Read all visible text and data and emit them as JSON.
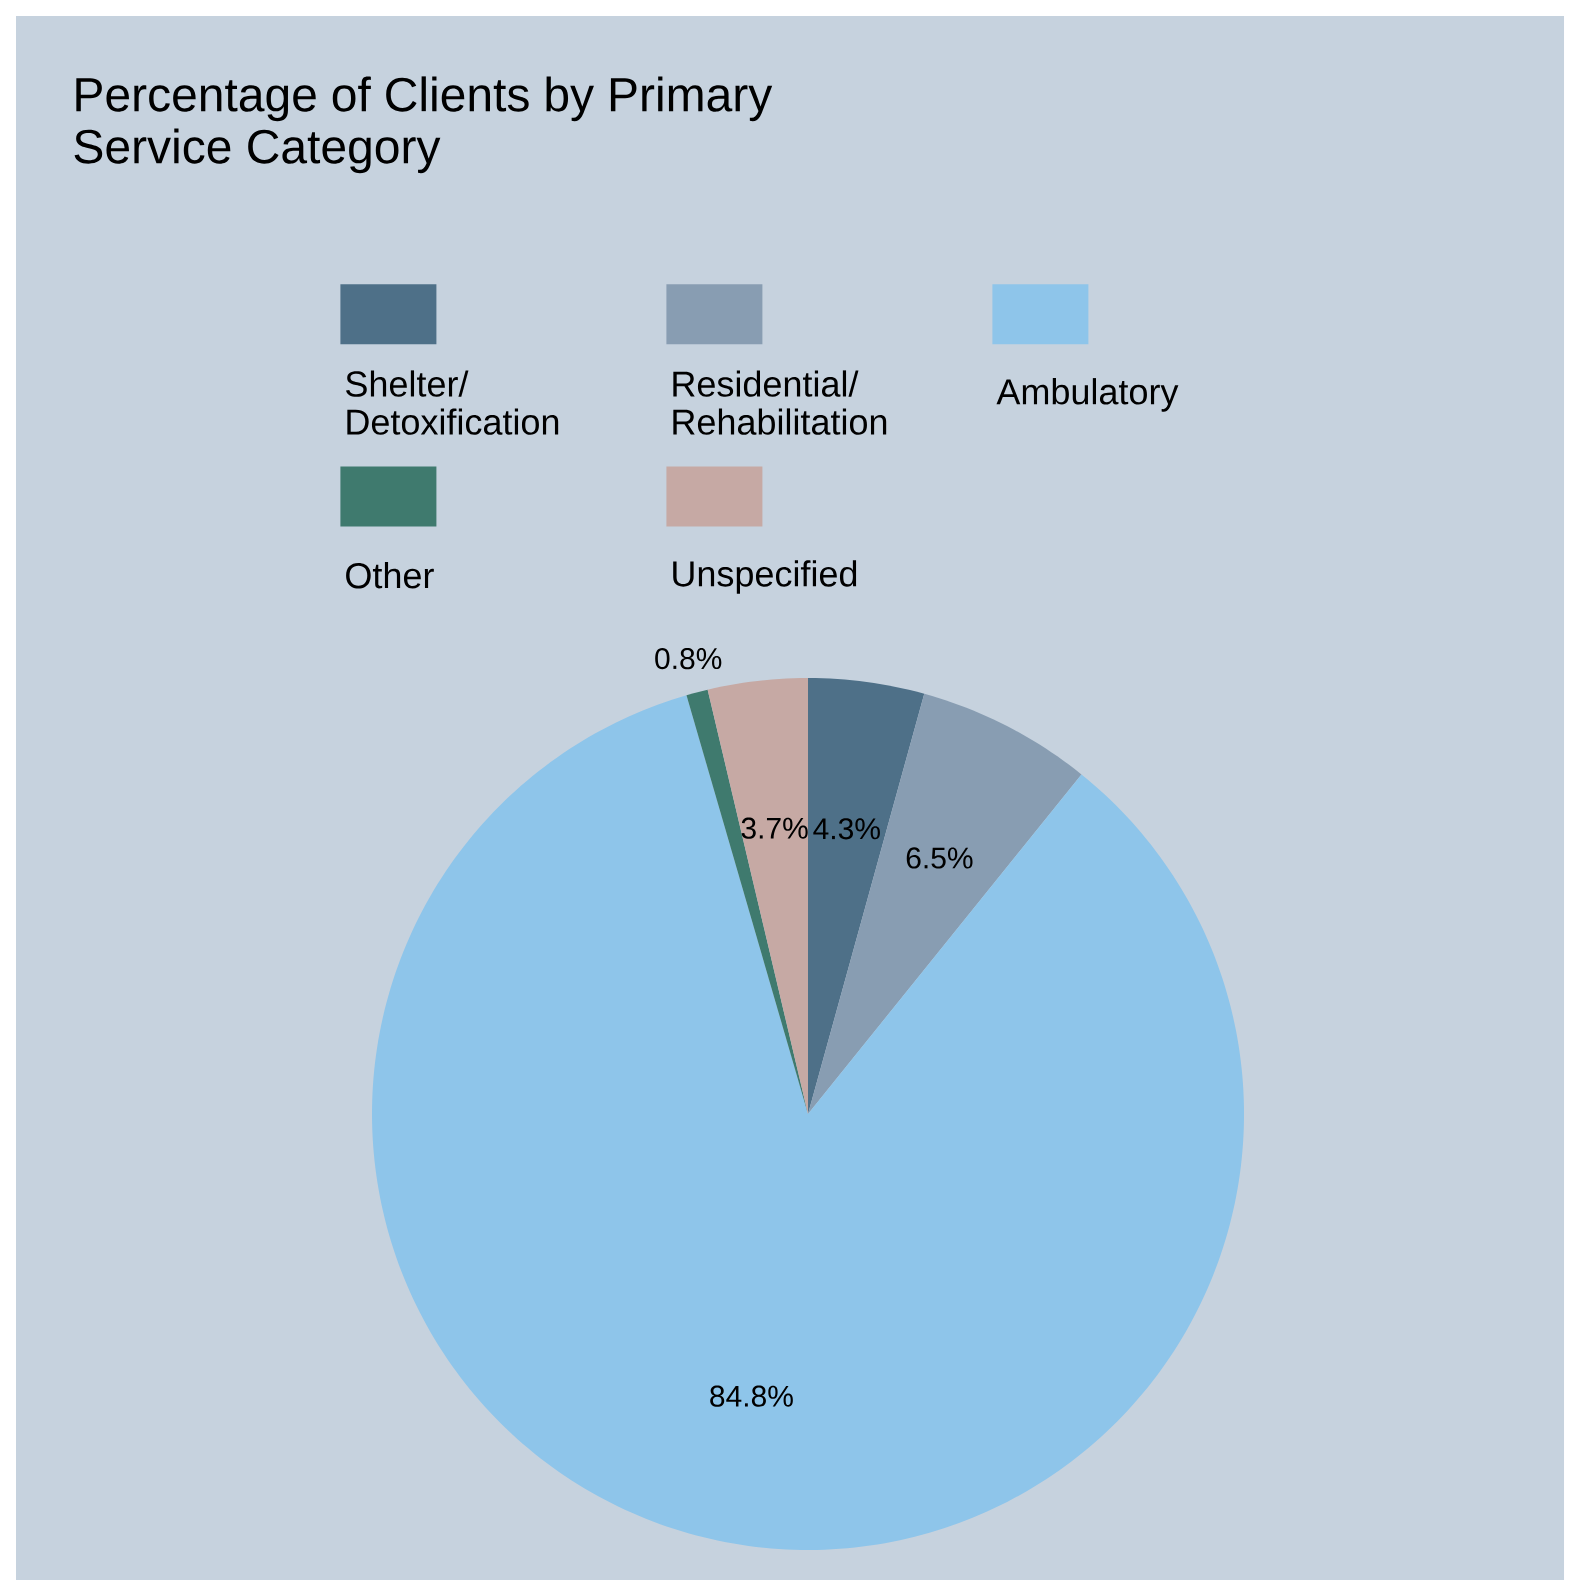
{
  "chart_data": {
    "type": "pie",
    "title": "Percentage of Clients by Primary Service Category",
    "categories": [
      "Shelter/ Detoxification",
      "Residential/ Rehabilitation",
      "Ambulatory",
      "Other",
      "Unspecified"
    ],
    "values": [
      4.3,
      6.5,
      84.8,
      0.8,
      3.7
    ],
    "value_labels": [
      "4.3%",
      "6.5%",
      "84.8%",
      "0.8%",
      "3.7%"
    ],
    "colors": [
      "#4e7088",
      "#889db2",
      "#8ec5ea",
      "#3f7a6e",
      "#c6a9a4"
    ],
    "legend": "top"
  }
}
